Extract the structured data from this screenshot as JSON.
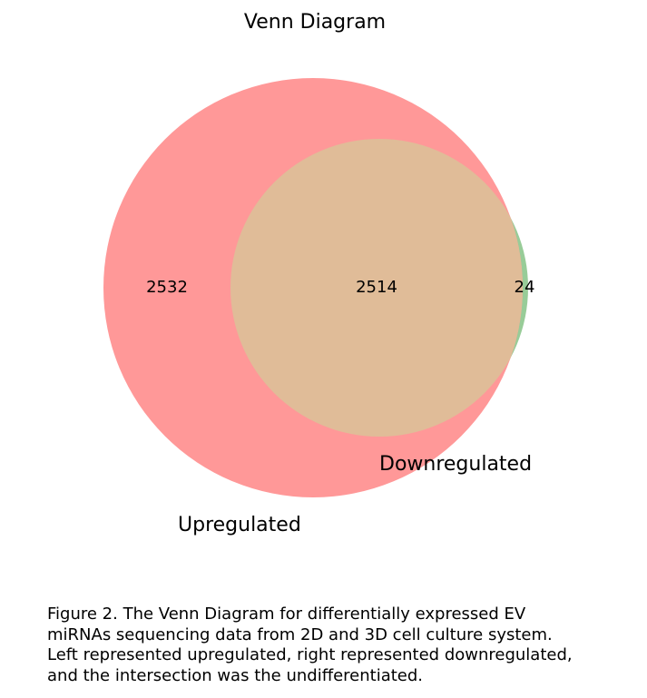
{
  "title": "Venn Diagram",
  "sets": [
    {
      "name": "Upregulated",
      "only_count": "2532",
      "color": "#ff9898"
    },
    {
      "name": "Downregulated",
      "only_count": "24",
      "color": "#98cc98"
    }
  ],
  "intersection": {
    "count": "2514",
    "color": "#e0bc98"
  },
  "caption": {
    "lines": [
      "Figure 2. The Venn Diagram for differentially expressed EV",
      "miRNAs sequencing data from 2D and 3D cell culture system.",
      "Left represented upregulated, right represented downregulated,",
      "and the intersection was the undifferentiated."
    ]
  }
}
